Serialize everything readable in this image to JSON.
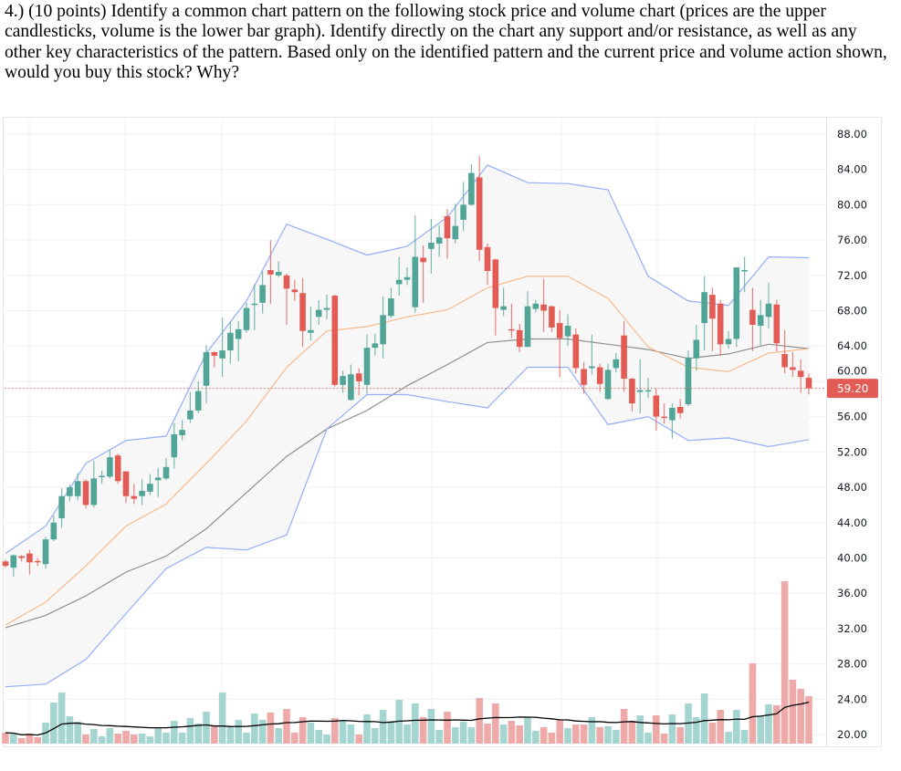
{
  "question": {
    "text": "4.) (10 points) Identify a common chart pattern on the following stock price and volume chart (prices are the upper candlesticks, volume is the lower bar graph). Identify directly on the chart any support and/or resistance, as well as any other key characteristics of the pattern. Based only on the identified pattern and the current price and volume action shown, would you buy this stock? Why?"
  },
  "chart_data": {
    "type": "candlestick",
    "title": "",
    "xlabel": "",
    "ylabel": "",
    "ylim": [
      20,
      88
    ],
    "y_ticks": [
      88,
      84,
      80,
      76,
      72,
      68,
      64,
      60,
      56,
      52,
      48,
      44,
      40,
      36,
      32,
      28,
      24,
      20
    ],
    "y_tick_labels": [
      "88.00",
      "84.00",
      "80.00",
      "76.00",
      "72.00",
      "68.00",
      "64.00",
      "60.00",
      "56.00",
      "52.00",
      "48.00",
      "44.00",
      "40.00",
      "36.00",
      "32.00",
      "28.00",
      "24.00",
      "20.00"
    ],
    "grid": true,
    "last_price": 59.2,
    "last_price_label": "59.20",
    "colors": {
      "up": "#50a596",
      "down": "#e25c55",
      "up_volume": "#a5d5d0",
      "down_volume": "#eeaaa8",
      "band": "#94aef7",
      "basis": "#f7b98d",
      "slow_ma": "#8f8f8f",
      "volume_ma": "#000000",
      "band_fill": "#f7f7f7",
      "last_price": "#e25c55"
    },
    "ohlc_fields": [
      "open",
      "high",
      "low",
      "close"
    ],
    "ohlc": [
      [
        39.6,
        39.8,
        38.9,
        39.1
      ],
      [
        38.9,
        40.4,
        37.9,
        40.3
      ],
      [
        40.2,
        40.3,
        39.6,
        40.0
      ],
      [
        40.5,
        40.9,
        38.1,
        39.5
      ],
      [
        39.65,
        40.0,
        39.1,
        39.55
      ],
      [
        39.3,
        42.4,
        38.8,
        42.1
      ],
      [
        42.1,
        44.8,
        41.9,
        44.0
      ],
      [
        44.5,
        47.9,
        43.4,
        47.0
      ],
      [
        47.0,
        48.3,
        46.4,
        48.0
      ],
      [
        47.0,
        49.6,
        46.5,
        48.7
      ],
      [
        48.7,
        48.9,
        45.6,
        46.0
      ],
      [
        46.0,
        51.0,
        45.7,
        49.0
      ],
      [
        49.2,
        49.9,
        48.4,
        49.3
      ],
      [
        49.2,
        52.2,
        49.0,
        51.4
      ],
      [
        51.6,
        51.8,
        48.4,
        48.7
      ],
      [
        49.8,
        49.8,
        46.2,
        47.0
      ],
      [
        47.0,
        48.4,
        46.1,
        46.7
      ],
      [
        47.0,
        48.9,
        46.0,
        47.6
      ],
      [
        47.5,
        49.5,
        47.1,
        48.4
      ],
      [
        48.8,
        50.2,
        46.9,
        49.1
      ],
      [
        49.0,
        51.3,
        48.8,
        50.3
      ],
      [
        51.4,
        55.3,
        50.1,
        54.0
      ],
      [
        53.9,
        55.6,
        53.3,
        54.5
      ],
      [
        55.7,
        58.8,
        55.3,
        56.7
      ],
      [
        56.7,
        60.0,
        56.4,
        58.9
      ],
      [
        59.5,
        64.1,
        57.5,
        63.3
      ],
      [
        63.3,
        63.4,
        61.6,
        62.9
      ],
      [
        62.6,
        67.2,
        60.5,
        63.5
      ],
      [
        63.5,
        66.8,
        62.0,
        65.5
      ],
      [
        64.8,
        66.8,
        62.3,
        65.9
      ],
      [
        65.8,
        68.9,
        65.5,
        68.3
      ],
      [
        68.7,
        71.0,
        65.8,
        68.8
      ],
      [
        68.9,
        72.5,
        67.7,
        70.9
      ],
      [
        72.6,
        76.0,
        68.8,
        72.1
      ],
      [
        72.0,
        73.6,
        71.8,
        72.4
      ],
      [
        72.0,
        72.2,
        66.4,
        70.5
      ],
      [
        70.4,
        71.5,
        69.1,
        70.1
      ],
      [
        70.0,
        71.7,
        63.9,
        65.7
      ],
      [
        65.5,
        68.5,
        64.6,
        65.8
      ],
      [
        67.3,
        69.2,
        66.4,
        68.1
      ],
      [
        68.1,
        69.8,
        67.0,
        68.3
      ],
      [
        69.7,
        69.8,
        59.4,
        59.6
      ],
      [
        59.6,
        61.2,
        58.7,
        60.6
      ],
      [
        57.9,
        61.9,
        57.8,
        60.8
      ],
      [
        60.9,
        61.5,
        58.4,
        60.0
      ],
      [
        59.6,
        65.3,
        58.6,
        63.8
      ],
      [
        63.8,
        65.4,
        62.9,
        64.3
      ],
      [
        64.2,
        69.6,
        62.6,
        67.5
      ],
      [
        67.4,
        70.6,
        67.2,
        69.4
      ],
      [
        71.0,
        74.1,
        69.7,
        71.5
      ],
      [
        71.5,
        72.9,
        70.9,
        71.8
      ],
      [
        68.4,
        78.8,
        67.8,
        74.1
      ],
      [
        74.0,
        75.4,
        68.9,
        73.5
      ],
      [
        75.0,
        78.4,
        72.2,
        75.7
      ],
      [
        75.6,
        77.7,
        74.1,
        76.3
      ],
      [
        78.7,
        79.5,
        73.9,
        76.2
      ],
      [
        76.1,
        80.1,
        75.6,
        77.6
      ],
      [
        78.3,
        82.6,
        77.0,
        80.0
      ],
      [
        80.0,
        84.6,
        79.9,
        83.6
      ],
      [
        83.1,
        85.5,
        73.6,
        74.9
      ],
      [
        75.2,
        75.6,
        70.9,
        72.5
      ],
      [
        73.8,
        73.9,
        65.2,
        68.3
      ],
      [
        68.1,
        70.6,
        67.4,
        68.5
      ],
      [
        65.9,
        68.8,
        64.9,
        65.8
      ],
      [
        65.8,
        66.5,
        63.3,
        63.9
      ],
      [
        63.9,
        70.2,
        63.9,
        68.5
      ],
      [
        68.2,
        69.2,
        67.8,
        68.8
      ],
      [
        68.7,
        71.6,
        65.6,
        68.0
      ],
      [
        68.5,
        68.6,
        65.6,
        66.1
      ],
      [
        66.6,
        68.1,
        60.5,
        64.9
      ],
      [
        65.1,
        67.6,
        64.0,
        66.3
      ],
      [
        65.3,
        66.0,
        60.9,
        61.5
      ],
      [
        61.4,
        62.2,
        58.6,
        59.6
      ],
      [
        61.5,
        65.3,
        60.8,
        61.7
      ],
      [
        61.6,
        62.0,
        58.8,
        59.7
      ],
      [
        58.0,
        62.0,
        57.9,
        61.3
      ],
      [
        61.5,
        63.2,
        61.0,
        62.5
      ],
      [
        65.2,
        66.8,
        58.8,
        60.3
      ],
      [
        60.3,
        60.4,
        56.6,
        57.5
      ],
      [
        58.8,
        62.5,
        56.4,
        59.0
      ],
      [
        58.9,
        60.4,
        58.1,
        59.0
      ],
      [
        58.4,
        59.2,
        54.4,
        56.0
      ],
      [
        56.0,
        57.5,
        55.2,
        55.9
      ],
      [
        55.6,
        57.5,
        53.5,
        57.0
      ],
      [
        57.1,
        58.0,
        55.8,
        56.4
      ],
      [
        57.4,
        63.5,
        57.2,
        62.7
      ],
      [
        62.6,
        66.4,
        61.2,
        64.7
      ],
      [
        66.6,
        71.9,
        63.5,
        70.1
      ],
      [
        69.8,
        70.6,
        63.4,
        67.1
      ],
      [
        68.8,
        69.2,
        62.9,
        64.2
      ],
      [
        64.2,
        65.7,
        63.7,
        64.8
      ],
      [
        64.8,
        72.9,
        63.9,
        72.9
      ],
      [
        72.5,
        74.1,
        70.1,
        72.6
      ],
      [
        68.1,
        70.6,
        63.4,
        66.4
      ],
      [
        66.3,
        69.2,
        64.0,
        67.5
      ],
      [
        67.3,
        71.2,
        66.0,
        68.8
      ],
      [
        68.7,
        69.2,
        63.4,
        64.3
      ],
      [
        63.1,
        65.8,
        60.9,
        61.6
      ],
      [
        61.6,
        63.3,
        60.5,
        61.3
      ],
      [
        61.2,
        62.5,
        58.7,
        60.5
      ],
      [
        60.4,
        60.9,
        58.5,
        59.2
      ]
    ],
    "volume_relative": [
      12,
      11,
      6,
      11,
      7,
      23,
      45,
      56,
      30,
      24,
      10,
      16,
      8,
      17,
      11,
      14,
      10,
      11,
      8,
      17,
      12,
      25,
      12,
      28,
      22,
      35,
      20,
      56,
      18,
      26,
      12,
      33,
      26,
      34,
      17,
      38,
      12,
      29,
      23,
      15,
      10,
      28,
      25,
      21,
      10,
      32,
      17,
      37,
      25,
      48,
      21,
      44,
      29,
      38,
      15,
      35,
      18,
      24,
      18,
      50,
      22,
      44,
      21,
      25,
      20,
      29,
      14,
      18,
      12,
      26,
      17,
      21,
      21,
      29,
      18,
      19,
      15,
      38,
      25,
      31,
      12,
      31,
      11,
      32,
      18,
      44,
      29,
      55,
      23,
      37,
      13,
      37,
      15,
      88,
      30,
      43,
      42,
      178,
      70,
      60,
      52
    ],
    "overlay_sample_step": 5,
    "bollinger_upper": [
      40.5,
      43.6,
      50.7,
      53.3,
      53.8,
      63.2,
      69.1,
      77.8,
      76.1,
      74.3,
      75.3,
      78.6,
      84.5,
      82.5,
      82.4,
      81.7,
      71.9,
      69.1,
      68.6,
      74.1,
      74.0
    ],
    "bollinger_basis": [
      32.4,
      35.0,
      39.1,
      43.6,
      46.1,
      50.7,
      55.5,
      61.6,
      65.7,
      66.2,
      67.3,
      68.1,
      70.6,
      71.9,
      71.9,
      69.4,
      63.9,
      61.6,
      61.1,
      63.2,
      63.7
    ],
    "bollinger_lower": [
      25.4,
      25.7,
      28.5,
      33.7,
      38.8,
      41.2,
      40.9,
      42.6,
      54.6,
      58.5,
      58.5,
      57.7,
      57.0,
      61.6,
      61.6,
      55.1,
      56.0,
      53.3,
      53.6,
      52.6,
      53.4
    ],
    "slow_ma": [
      32.1,
      33.5,
      35.7,
      38.4,
      40.2,
      43.3,
      47.4,
      51.5,
      54.6,
      56.7,
      59.5,
      61.9,
      64.4,
      64.8,
      64.8,
      64.2,
      63.6,
      62.6,
      63.1,
      64.2,
      63.7
    ]
  }
}
